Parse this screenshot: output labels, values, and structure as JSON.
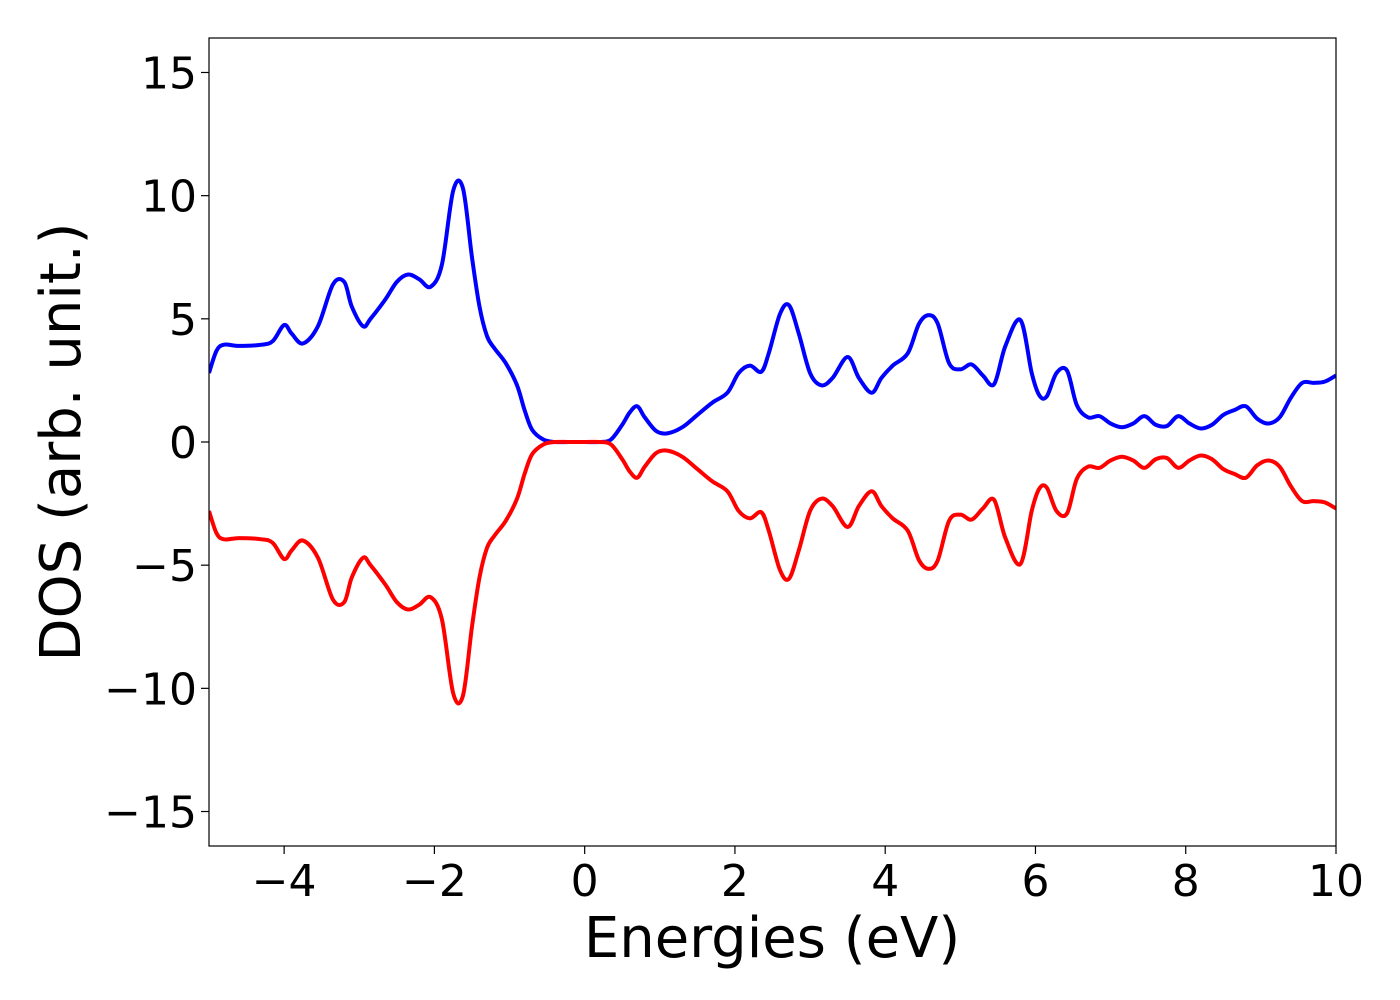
{
  "chart_data": {
    "type": "line",
    "xlabel": "Energies (eV)",
    "ylabel": "DOS (arb. unit.)",
    "xlim": [
      -5,
      10
    ],
    "ylim": [
      -16.4,
      16.4
    ],
    "xticks": [
      -4,
      -2,
      0,
      2,
      4,
      6,
      8,
      10
    ],
    "yticks": [
      15,
      10,
      5,
      0,
      -5,
      -10,
      -15
    ],
    "xtick_labels": [
      "−4",
      "−2",
      "0",
      "2",
      "4",
      "6",
      "8",
      "10"
    ],
    "ytick_labels": [
      "15",
      "10",
      "5",
      "0",
      "−5",
      "−10",
      "−15"
    ],
    "grid": false,
    "legend": "none",
    "series": [
      {
        "color": "#0000ff",
        "x": [
          -5.0,
          -4.9,
          -4.8,
          -4.6,
          -4.3,
          -4.15,
          -4.0,
          -3.9,
          -3.75,
          -3.55,
          -3.35,
          -3.2,
          -3.1,
          -2.95,
          -2.85,
          -2.65,
          -2.5,
          -2.35,
          -2.2,
          -2.05,
          -1.9,
          -1.75,
          -1.62,
          -1.5,
          -1.4,
          -1.3,
          -1.2,
          -1.05,
          -0.9,
          -0.8,
          -0.7,
          -0.55,
          -0.4,
          -0.2,
          0.0,
          0.2,
          0.35,
          0.5,
          0.6,
          0.7,
          0.8,
          0.95,
          1.1,
          1.3,
          1.5,
          1.7,
          1.9,
          2.05,
          2.2,
          2.35,
          2.45,
          2.6,
          2.72,
          2.85,
          3.0,
          3.15,
          3.3,
          3.5,
          3.65,
          3.82,
          3.95,
          4.1,
          4.3,
          4.45,
          4.58,
          4.7,
          4.85,
          5.0,
          5.15,
          5.3,
          5.45,
          5.6,
          5.8,
          5.95,
          6.05,
          6.15,
          6.28,
          6.42,
          6.55,
          6.7,
          6.85,
          7.0,
          7.15,
          7.3,
          7.45,
          7.6,
          7.75,
          7.9,
          8.05,
          8.2,
          8.35,
          8.5,
          8.65,
          8.8,
          8.95,
          9.1,
          9.25,
          9.4,
          9.55,
          9.7,
          9.85,
          10.0
        ],
        "values": [
          2.8,
          3.7,
          3.95,
          3.9,
          3.95,
          4.1,
          4.75,
          4.4,
          4.0,
          4.7,
          6.4,
          6.5,
          5.5,
          4.7,
          5.0,
          5.8,
          6.5,
          6.8,
          6.6,
          6.3,
          7.2,
          10.2,
          10.3,
          7.5,
          5.5,
          4.3,
          3.8,
          3.2,
          2.3,
          1.3,
          0.5,
          0.1,
          0.0,
          0.0,
          0.0,
          0.0,
          0.1,
          0.7,
          1.2,
          1.45,
          1.0,
          0.45,
          0.35,
          0.6,
          1.1,
          1.6,
          2.0,
          2.8,
          3.1,
          2.85,
          3.6,
          5.2,
          5.55,
          4.4,
          2.8,
          2.3,
          2.6,
          3.45,
          2.6,
          2.0,
          2.6,
          3.1,
          3.6,
          4.8,
          5.15,
          4.8,
          3.2,
          2.95,
          3.15,
          2.7,
          2.35,
          3.9,
          4.95,
          2.8,
          1.9,
          1.85,
          2.8,
          2.9,
          1.5,
          1.0,
          1.05,
          0.75,
          0.6,
          0.75,
          1.05,
          0.7,
          0.65,
          1.05,
          0.75,
          0.55,
          0.7,
          1.1,
          1.3,
          1.45,
          0.95,
          0.75,
          1.0,
          1.8,
          2.4,
          2.4,
          2.45,
          2.7
        ]
      },
      {
        "color": "#ff0000",
        "x": [
          -5.0,
          -4.9,
          -4.8,
          -4.6,
          -4.3,
          -4.15,
          -4.0,
          -3.9,
          -3.75,
          -3.55,
          -3.35,
          -3.2,
          -3.1,
          -2.95,
          -2.85,
          -2.65,
          -2.5,
          -2.35,
          -2.2,
          -2.05,
          -1.9,
          -1.75,
          -1.62,
          -1.5,
          -1.4,
          -1.3,
          -1.2,
          -1.05,
          -0.9,
          -0.8,
          -0.7,
          -0.55,
          -0.4,
          -0.2,
          0.0,
          0.2,
          0.35,
          0.5,
          0.6,
          0.7,
          0.8,
          0.95,
          1.1,
          1.3,
          1.5,
          1.7,
          1.9,
          2.05,
          2.2,
          2.35,
          2.45,
          2.6,
          2.72,
          2.85,
          3.0,
          3.15,
          3.3,
          3.5,
          3.65,
          3.82,
          3.95,
          4.1,
          4.3,
          4.45,
          4.58,
          4.7,
          4.85,
          5.0,
          5.15,
          5.3,
          5.45,
          5.6,
          5.8,
          5.95,
          6.05,
          6.15,
          6.28,
          6.42,
          6.55,
          6.7,
          6.85,
          7.0,
          7.15,
          7.3,
          7.45,
          7.6,
          7.75,
          7.9,
          8.05,
          8.2,
          8.35,
          8.5,
          8.65,
          8.8,
          8.95,
          9.1,
          9.25,
          9.4,
          9.55,
          9.7,
          9.85,
          10.0
        ],
        "values": [
          -2.8,
          -3.7,
          -3.95,
          -3.9,
          -3.95,
          -4.1,
          -4.75,
          -4.4,
          -4.0,
          -4.7,
          -6.4,
          -6.5,
          -5.5,
          -4.7,
          -5.0,
          -5.8,
          -6.5,
          -6.8,
          -6.6,
          -6.3,
          -7.2,
          -10.2,
          -10.3,
          -7.5,
          -5.5,
          -4.3,
          -3.8,
          -3.2,
          -2.3,
          -1.3,
          -0.5,
          -0.1,
          0.0,
          0.0,
          0.0,
          0.0,
          -0.1,
          -0.7,
          -1.2,
          -1.45,
          -1.0,
          -0.45,
          -0.35,
          -0.6,
          -1.1,
          -1.6,
          -2.0,
          -2.8,
          -3.1,
          -2.85,
          -3.6,
          -5.2,
          -5.55,
          -4.4,
          -2.8,
          -2.3,
          -2.6,
          -3.45,
          -2.6,
          -2.0,
          -2.6,
          -3.1,
          -3.6,
          -4.8,
          -5.15,
          -4.8,
          -3.2,
          -2.95,
          -3.15,
          -2.7,
          -2.35,
          -3.9,
          -4.95,
          -2.8,
          -1.9,
          -1.85,
          -2.8,
          -2.9,
          -1.5,
          -1.0,
          -1.05,
          -0.75,
          -0.6,
          -0.75,
          -1.05,
          -0.7,
          -0.65,
          -1.05,
          -0.75,
          -0.55,
          -0.7,
          -1.1,
          -1.3,
          -1.45,
          -0.95,
          -0.75,
          -1.0,
          -1.8,
          -2.4,
          -2.4,
          -2.45,
          -2.7
        ]
      }
    ]
  }
}
